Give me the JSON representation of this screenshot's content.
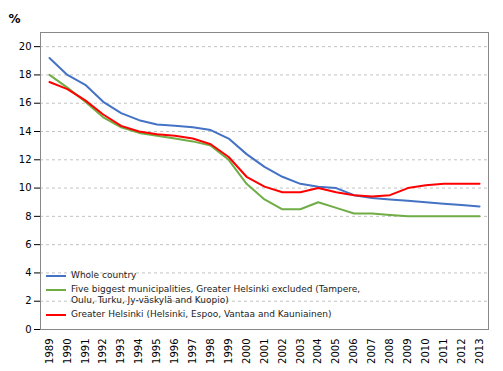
{
  "chart_data": {
    "type": "line",
    "y_label": "%",
    "x": [
      1989,
      1990,
      1991,
      1992,
      1993,
      1994,
      1995,
      1996,
      1997,
      1998,
      1999,
      2000,
      2001,
      2002,
      2003,
      2004,
      2005,
      2006,
      2007,
      2008,
      2009,
      2010,
      2011,
      2012,
      2013
    ],
    "series": [
      {
        "name": "Whole country",
        "color": "#4472C4",
        "values": [
          19.2,
          18.0,
          17.3,
          16.1,
          15.3,
          14.8,
          14.5,
          14.4,
          14.3,
          14.1,
          13.5,
          12.4,
          11.5,
          10.8,
          10.3,
          10.1,
          10.0,
          9.5,
          9.3,
          9.2,
          9.1,
          9.0,
          8.9,
          8.8,
          8.7
        ]
      },
      {
        "name": "Five biggest municipalities, Greater Helsinki excluded (Tampere,\nOulu, Turku, Jy-väskylä and Kuopio)",
        "color": "#70AD47",
        "values": [
          18.0,
          17.1,
          16.1,
          15.0,
          14.3,
          13.9,
          13.7,
          13.5,
          13.3,
          13.0,
          12.0,
          10.3,
          9.2,
          8.5,
          8.5,
          9.0,
          8.6,
          8.2,
          8.2,
          8.1,
          8.0,
          8.0,
          8.0,
          8.0,
          8.0
        ]
      },
      {
        "name": "Greater Helsinki (Helsinki, Espoo, Vantaa and Kauniainen)",
        "color": "#FF0000",
        "values": [
          17.5,
          17.0,
          16.2,
          15.2,
          14.4,
          14.0,
          13.8,
          13.7,
          13.5,
          13.1,
          12.2,
          10.8,
          10.1,
          9.7,
          9.7,
          10.0,
          9.7,
          9.5,
          9.4,
          9.5,
          10.0,
          10.2,
          10.3,
          10.3,
          10.3
        ]
      }
    ],
    "xlim": [
      1988.5,
      2013.5
    ],
    "xticks": [
      1989,
      1990,
      1991,
      1992,
      1993,
      1994,
      1995,
      1996,
      1997,
      1998,
      1999,
      2000,
      2001,
      2002,
      2003,
      2004,
      2005,
      2006,
      2007,
      2008,
      2009,
      2010,
      2011,
      2012,
      2013
    ],
    "ylim": [
      0,
      21
    ],
    "yticks": [
      0,
      2,
      4,
      6,
      8,
      10,
      12,
      14,
      16,
      18,
      20
    ],
    "grid": true,
    "legend": "lower left"
  }
}
